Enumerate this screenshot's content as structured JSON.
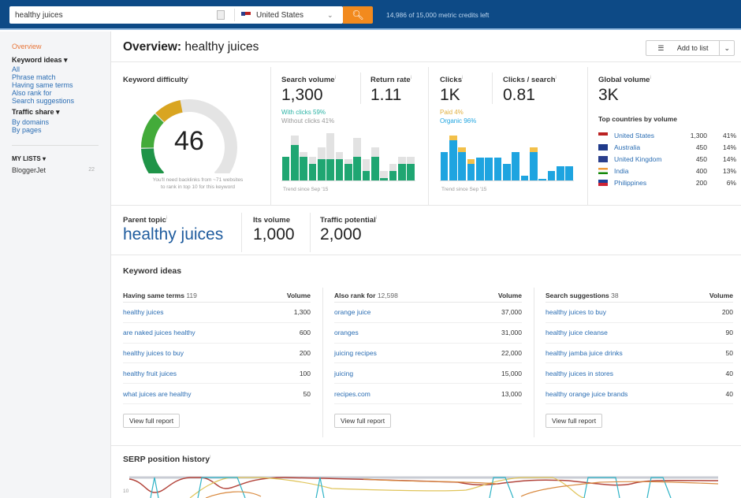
{
  "topbar": {
    "query": "healthy juices",
    "country": "United States",
    "credits": "14,986 of 15,000 metric credits left"
  },
  "sidebar": {
    "overview": "Overview",
    "keyword_ideas": "Keyword ideas ▾",
    "ki_items": [
      "All",
      "Phrase match",
      "Having same terms",
      "Also rank for",
      "Search suggestions"
    ],
    "traffic_share": "Traffic share ▾",
    "ts_items": [
      "By domains",
      "By pages"
    ],
    "my_lists": "MY LISTS ▾",
    "lists": [
      {
        "name": "BloggerJet",
        "count": "22"
      }
    ]
  },
  "header": {
    "title_prefix": "Overview:",
    "title_keyword": "healthy juices",
    "add_to_list": "Add to list"
  },
  "difficulty": {
    "label": "Keyword difficulty",
    "value": "46",
    "score": 46,
    "note1": "You'll need backlinks from ~71 websites",
    "note2": "to rank in top 10 for this keyword"
  },
  "search_volume": {
    "label": "Search volume",
    "value": "1,300",
    "with_clicks": "With clicks 59%",
    "without_clicks": "Without clicks 41%",
    "trend": "Trend since Sep '15",
    "bars_clicks": [
      0.5,
      0.75,
      0.5,
      0.35,
      0.45,
      0.45,
      0.45,
      0.35,
      0.5,
      0.2,
      0.5,
      0.05,
      0.2,
      0.35,
      0.35
    ],
    "bars_total": [
      0.5,
      0.95,
      0.6,
      0.5,
      0.7,
      1.0,
      0.6,
      0.45,
      0.9,
      0.45,
      0.7,
      0.2,
      0.35,
      0.5,
      0.5
    ]
  },
  "return_rate": {
    "label": "Return rate",
    "value": "1.11"
  },
  "clicks": {
    "label": "Clicks",
    "value": "1K",
    "paid": "Paid 4%",
    "organic": "Organic 96%",
    "trend": "Trend since Sep '15",
    "organic_bars": [
      0.6,
      0.85,
      0.6,
      0.35,
      0.48,
      0.48,
      0.48,
      0.35,
      0.6,
      0.1,
      0.6,
      0.03,
      0.2,
      0.3,
      0.3
    ],
    "paid_bars": [
      0,
      0.1,
      0.1,
      0.1,
      0,
      0,
      0,
      0,
      0,
      0,
      0.1,
      0,
      0,
      0,
      0
    ]
  },
  "clicks_per_search": {
    "label": "Clicks / search",
    "value": "0.81"
  },
  "global": {
    "label": "Global volume",
    "value": "3K",
    "top_label": "Top countries by volume",
    "countries": [
      {
        "name": "United States",
        "volume": "1,300",
        "pct": "41%",
        "flag": "us"
      },
      {
        "name": "Australia",
        "volume": "450",
        "pct": "14%",
        "flag": "au"
      },
      {
        "name": "United Kingdom",
        "volume": "450",
        "pct": "14%",
        "flag": "uk"
      },
      {
        "name": "India",
        "volume": "400",
        "pct": "13%",
        "flag": "in"
      },
      {
        "name": "Philippines",
        "volume": "200",
        "pct": "6%",
        "flag": "ph"
      }
    ]
  },
  "parent": {
    "label": "Parent topic",
    "value": "healthy juices",
    "its_volume_label": "Its volume",
    "its_volume": "1,000",
    "traffic_label": "Traffic potential",
    "traffic": "2,000"
  },
  "keyword_ideas": {
    "title": "Keyword ideas",
    "view_full": "View full report",
    "volume_label": "Volume",
    "columns": [
      {
        "title": "Having same terms",
        "count": "119",
        "rows": [
          [
            "healthy juices",
            "1,300"
          ],
          [
            "are naked juices healthy",
            "600"
          ],
          [
            "healthy juices to buy",
            "200"
          ],
          [
            "healthy fruit juices",
            "100"
          ],
          [
            "what juices are healthy",
            "50"
          ]
        ]
      },
      {
        "title": "Also rank for",
        "count": "12,598",
        "rows": [
          [
            "orange juice",
            "37,000"
          ],
          [
            "oranges",
            "31,000"
          ],
          [
            "juicing recipes",
            "22,000"
          ],
          [
            "juicing",
            "15,000"
          ],
          [
            "recipes.com",
            "13,000"
          ]
        ]
      },
      {
        "title": "Search suggestions",
        "count": "38",
        "rows": [
          [
            "healthy juices to buy",
            "200"
          ],
          [
            "healthy juice cleanse",
            "90"
          ],
          [
            "healthy jamba juice drinks",
            "50"
          ],
          [
            "healthy juices in stores",
            "40"
          ],
          [
            "healthy orange juice brands",
            "40"
          ]
        ]
      }
    ]
  },
  "serp": {
    "title": "SERP position history",
    "axis_label": "10"
  },
  "colors": {
    "topbar": "#0d4a86",
    "accent": "#f28a1e",
    "green": "#1fa672",
    "blue": "#1ea4e0",
    "paid": "#f2c04a",
    "link": "#2a6db3"
  }
}
